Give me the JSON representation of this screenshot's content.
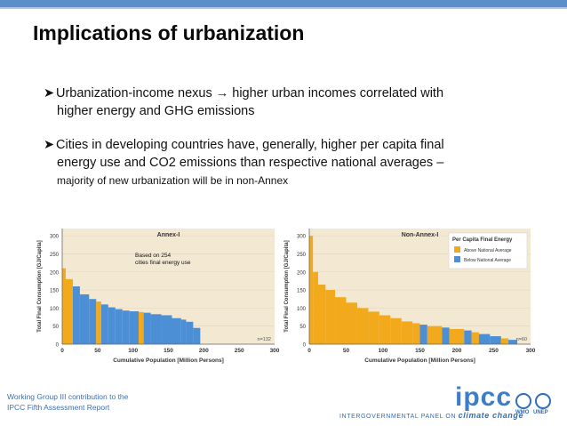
{
  "slide": {
    "title": "Implications of urbanization",
    "bullets": [
      {
        "line1": "Urbanization-income nexus → higher urban incomes correlated with",
        "line2": "higher energy and GHG emissions"
      },
      {
        "line1": "Cities in developing countries have, generally, higher per capita final",
        "line2": "energy use and CO2 emissions than respective national averages –",
        "line3": "majority of new urbanization will be in non-Annex"
      }
    ],
    "footer": {
      "line1": "Working Group III contribution to the",
      "line2": "IPCC Fifth Assessment Report"
    },
    "logo": {
      "text": "ipcc",
      "subtitle_a": "INTERGOVERNMENTAL PANEL ON ",
      "subtitle_b": "climate change",
      "wmo": "WMO",
      "unep": "UNEP"
    },
    "colors": {
      "accent": "#5b8fc9",
      "above": "#f2a91b",
      "below": "#4c8fd4",
      "chart_bg": "#f3e9d3"
    }
  },
  "chart_data": [
    {
      "type": "bar",
      "title": "Annex-I",
      "annotation": "Based on 254 cities final energy use",
      "n_label": "n=132",
      "xlabel": "Cumulative Population [Million Persons]",
      "ylabel": "Total Final Consumption [GJ/Capita]",
      "xlim": [
        0,
        300
      ],
      "ylim": [
        0,
        320
      ],
      "xticks": [
        0,
        50,
        100,
        150,
        200,
        250,
        300
      ],
      "yticks": [
        0,
        50,
        100,
        150,
        200,
        250,
        300
      ],
      "segments": [
        {
          "x0": 0,
          "x1": 5,
          "y": 210,
          "c": "above"
        },
        {
          "x0": 5,
          "x1": 15,
          "y": 180,
          "c": "above"
        },
        {
          "x0": 15,
          "x1": 25,
          "y": 160,
          "c": "below"
        },
        {
          "x0": 25,
          "x1": 38,
          "y": 138,
          "c": "below"
        },
        {
          "x0": 38,
          "x1": 48,
          "y": 125,
          "c": "below"
        },
        {
          "x0": 48,
          "x1": 55,
          "y": 118,
          "c": "above"
        },
        {
          "x0": 55,
          "x1": 65,
          "y": 110,
          "c": "below"
        },
        {
          "x0": 65,
          "x1": 75,
          "y": 102,
          "c": "below"
        },
        {
          "x0": 75,
          "x1": 85,
          "y": 97,
          "c": "below"
        },
        {
          "x0": 85,
          "x1": 95,
          "y": 93,
          "c": "below"
        },
        {
          "x0": 95,
          "x1": 108,
          "y": 91,
          "c": "below"
        },
        {
          "x0": 108,
          "x1": 115,
          "y": 89,
          "c": "above"
        },
        {
          "x0": 115,
          "x1": 125,
          "y": 87,
          "c": "below"
        },
        {
          "x0": 125,
          "x1": 140,
          "y": 83,
          "c": "below"
        },
        {
          "x0": 140,
          "x1": 155,
          "y": 80,
          "c": "below"
        },
        {
          "x0": 155,
          "x1": 168,
          "y": 72,
          "c": "below"
        },
        {
          "x0": 168,
          "x1": 175,
          "y": 68,
          "c": "below"
        },
        {
          "x0": 175,
          "x1": 185,
          "y": 62,
          "c": "below"
        },
        {
          "x0": 185,
          "x1": 195,
          "y": 45,
          "c": "below"
        }
      ]
    },
    {
      "type": "bar",
      "title": "Non-Annex-I",
      "n_label": "n=60",
      "xlabel": "Cumulative Population [Million Persons]",
      "ylabel": "Total Final Consumption [GJ/Capita]",
      "legend_title": "Per Capita Final Energy",
      "legend": [
        {
          "name": "Above National Average",
          "c": "above"
        },
        {
          "name": "Below National Average",
          "c": "below"
        }
      ],
      "xlim": [
        0,
        300
      ],
      "ylim": [
        0,
        320
      ],
      "xticks": [
        0,
        50,
        100,
        150,
        200,
        250,
        300
      ],
      "yticks": [
        0,
        50,
        100,
        150,
        200,
        250,
        300
      ],
      "segments": [
        {
          "x0": 0,
          "x1": 5,
          "y": 300,
          "c": "above"
        },
        {
          "x0": 5,
          "x1": 12,
          "y": 200,
          "c": "above"
        },
        {
          "x0": 12,
          "x1": 22,
          "y": 165,
          "c": "above"
        },
        {
          "x0": 22,
          "x1": 35,
          "y": 150,
          "c": "above"
        },
        {
          "x0": 35,
          "x1": 50,
          "y": 130,
          "c": "above"
        },
        {
          "x0": 50,
          "x1": 65,
          "y": 115,
          "c": "above"
        },
        {
          "x0": 65,
          "x1": 80,
          "y": 100,
          "c": "above"
        },
        {
          "x0": 80,
          "x1": 95,
          "y": 90,
          "c": "above"
        },
        {
          "x0": 95,
          "x1": 110,
          "y": 80,
          "c": "above"
        },
        {
          "x0": 110,
          "x1": 125,
          "y": 72,
          "c": "above"
        },
        {
          "x0": 125,
          "x1": 140,
          "y": 63,
          "c": "above"
        },
        {
          "x0": 140,
          "x1": 150,
          "y": 58,
          "c": "above"
        },
        {
          "x0": 150,
          "x1": 160,
          "y": 54,
          "c": "below"
        },
        {
          "x0": 160,
          "x1": 180,
          "y": 50,
          "c": "above"
        },
        {
          "x0": 180,
          "x1": 190,
          "y": 46,
          "c": "below"
        },
        {
          "x0": 190,
          "x1": 210,
          "y": 42,
          "c": "above"
        },
        {
          "x0": 210,
          "x1": 220,
          "y": 38,
          "c": "below"
        },
        {
          "x0": 220,
          "x1": 230,
          "y": 33,
          "c": "above"
        },
        {
          "x0": 230,
          "x1": 245,
          "y": 28,
          "c": "below"
        },
        {
          "x0": 245,
          "x1": 260,
          "y": 22,
          "c": "below"
        },
        {
          "x0": 260,
          "x1": 270,
          "y": 16,
          "c": "above"
        },
        {
          "x0": 270,
          "x1": 282,
          "y": 12,
          "c": "below"
        }
      ]
    }
  ]
}
